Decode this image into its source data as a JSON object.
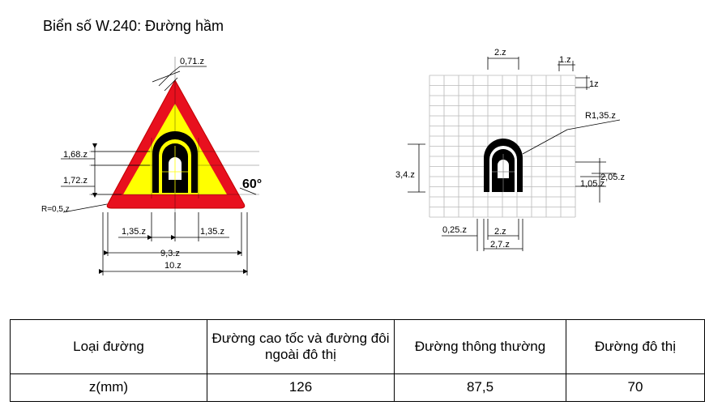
{
  "title": "Biển số W.240: Đường hầm",
  "sign_dims": {
    "stroke": "0,71.z",
    "upper": "1,68.z",
    "lower": "1,72.z",
    "radius": "R=0,5.z",
    "angle": "60°",
    "left_gap": "1,35.z",
    "right_gap": "1,35.z",
    "inner_width": "9,3.z",
    "outer_width": "10.z"
  },
  "grid_dims": {
    "top_width": "2.z",
    "cell_w": "1.z",
    "cell_h": "1z",
    "radius": "R1,35.z",
    "height_left": "3,4.z",
    "right_upper": "2,05.z",
    "right_lower": "1,05.z",
    "bottom_offset": "0,25.z",
    "bottom_inner": "2.z",
    "bottom_outer": "2,7.z"
  },
  "table": {
    "headers": [
      "Loại đường",
      "Đường cao tốc và đường đôi ngoài đô thị",
      "Đường thông thường",
      "Đường đô thị"
    ],
    "row_label": "z(mm)",
    "values": [
      "126",
      "87,5",
      "70"
    ]
  },
  "colors": {
    "sign_border": "#e8101e",
    "sign_fill": "#ffff00",
    "tunnel": "#000000"
  }
}
